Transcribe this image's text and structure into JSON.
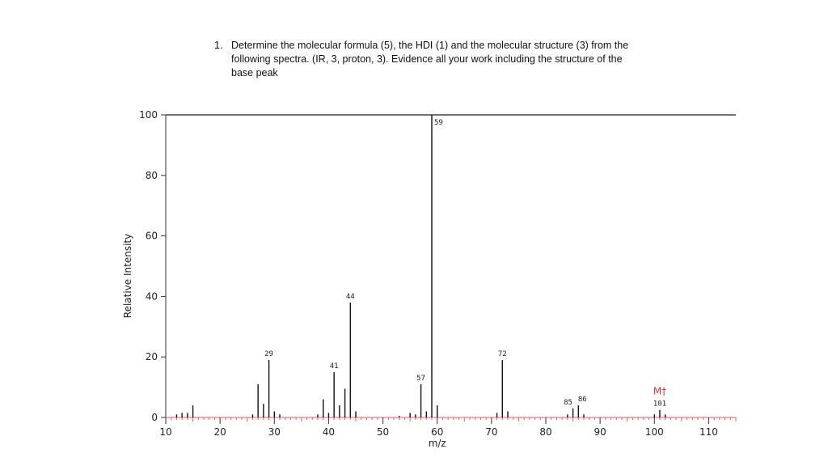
{
  "question": {
    "number": "1.",
    "lines": [
      "Determine the molecular formula (5), the HDI (1) and the molecular structure (3) from the",
      "following spectra. (IR, 3, proton, 3). Evidence all your work including the structure of the",
      "base peak"
    ]
  },
  "chart_data": {
    "type": "bar",
    "xlabel": "m/z",
    "ylabel": "Relative Intensity",
    "xlim": [
      10,
      115
    ],
    "ylim": [
      0,
      100
    ],
    "xticks": [
      10,
      20,
      30,
      40,
      50,
      60,
      70,
      80,
      90,
      100,
      110
    ],
    "yticks": [
      0,
      20,
      40,
      60,
      80,
      100
    ],
    "peaks": [
      {
        "mz": 12,
        "intensity": 1
      },
      {
        "mz": 13,
        "intensity": 1.5
      },
      {
        "mz": 14,
        "intensity": 1.5
      },
      {
        "mz": 15,
        "intensity": 4
      },
      {
        "mz": 26,
        "intensity": 1
      },
      {
        "mz": 27,
        "intensity": 11
      },
      {
        "mz": 28,
        "intensity": 4.5
      },
      {
        "mz": 29,
        "intensity": 19
      },
      {
        "mz": 30,
        "intensity": 2
      },
      {
        "mz": 31,
        "intensity": 1
      },
      {
        "mz": 38,
        "intensity": 1
      },
      {
        "mz": 39,
        "intensity": 6
      },
      {
        "mz": 40,
        "intensity": 1.5
      },
      {
        "mz": 41,
        "intensity": 15
      },
      {
        "mz": 42,
        "intensity": 4
      },
      {
        "mz": 43,
        "intensity": 9.5
      },
      {
        "mz": 44,
        "intensity": 38
      },
      {
        "mz": 45,
        "intensity": 2
      },
      {
        "mz": 53,
        "intensity": 0.5
      },
      {
        "mz": 55,
        "intensity": 1.5
      },
      {
        "mz": 56,
        "intensity": 1
      },
      {
        "mz": 57,
        "intensity": 11
      },
      {
        "mz": 58,
        "intensity": 2
      },
      {
        "mz": 59,
        "intensity": 100
      },
      {
        "mz": 60,
        "intensity": 4
      },
      {
        "mz": 71,
        "intensity": 1.5
      },
      {
        "mz": 72,
        "intensity": 19
      },
      {
        "mz": 73,
        "intensity": 2
      },
      {
        "mz": 84,
        "intensity": 1
      },
      {
        "mz": 85,
        "intensity": 3
      },
      {
        "mz": 86,
        "intensity": 4
      },
      {
        "mz": 87,
        "intensity": 1
      },
      {
        "mz": 100,
        "intensity": 1
      },
      {
        "mz": 101,
        "intensity": 2.5
      },
      {
        "mz": 102,
        "intensity": 1
      }
    ],
    "peak_labels": [
      {
        "text": "29",
        "mz": 29,
        "intensity": 19
      },
      {
        "text": "41",
        "mz": 41,
        "intensity": 15
      },
      {
        "text": "44",
        "mz": 44,
        "intensity": 38
      },
      {
        "text": "57",
        "mz": 57,
        "intensity": 11
      },
      {
        "text": "59",
        "mz": 59,
        "intensity": 100
      },
      {
        "text": "72",
        "mz": 72,
        "intensity": 19
      },
      {
        "text": "85",
        "mz": 85,
        "intensity": 3
      },
      {
        "text": "86",
        "mz": 86,
        "intensity": 4
      },
      {
        "text": "101",
        "mz": 101,
        "intensity": 2.5
      }
    ],
    "molecular_ion": {
      "text": "M†",
      "mz": 101,
      "color": "#e53030"
    },
    "colors": {
      "axis": "#333333",
      "baseline": "#e06060",
      "peak": "#111111",
      "top_line": "#444444"
    }
  }
}
